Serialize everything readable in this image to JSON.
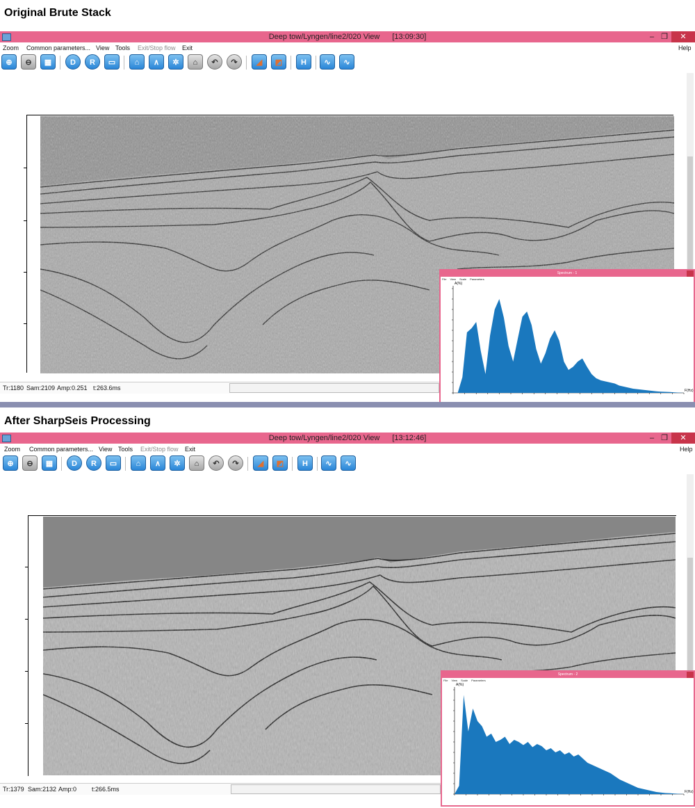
{
  "headings": {
    "top": "Original Brute Stack",
    "bottom": "After SharpSeis Processing"
  },
  "colors": {
    "titlebar": "#e8668d",
    "close_button": "#c8344a",
    "toolbar_button": "#2a86d8",
    "spectrum_fill": "#1a78be"
  },
  "menu": {
    "zoom": "Zoom",
    "common": "Common parameters...",
    "view": "View",
    "tools": "Tools",
    "exit_stop": "Exit/Stop flow",
    "exit": "Exit",
    "help": "Help"
  },
  "window_controls": {
    "minimize": "–",
    "restore": "❐",
    "close": "✕"
  },
  "toolbar_icons": [
    "zoom-in-icon",
    "zoom-out-icon",
    "fit-icon",
    "d-icon",
    "r-icon",
    "ruler-icon",
    "pick-icon",
    "horizon-icon",
    "gear-pick-icon",
    "trace-icon",
    "undo-icon",
    "redo-icon",
    "amplitude-icon",
    "edit-icon",
    "h-icon",
    "wave-icon",
    "wave-plus-icon"
  ],
  "windows": [
    {
      "title": "Deep tow/Lyngen/line2/020 View",
      "time": "[13:09:30]",
      "status": {
        "trace": "Tr:1180",
        "sample": "Sam:2109",
        "amp": "Amp:0.251",
        "time": "t:263.6ms"
      },
      "spectrum_title": "Spectrum - 1"
    },
    {
      "title": "Deep tow/Lyngen/line2/020 View",
      "time": "[13:12:46]",
      "status": {
        "trace": "Tr:1379",
        "sample": "Sam:2132",
        "amp": "Amp:0",
        "time": "t:266.5ms"
      },
      "spectrum_title": "Spectrum - 2"
    }
  ],
  "spectrum_menu": [
    "File",
    "View",
    "Scale",
    "Parameters"
  ],
  "spectrum_ylabel": "A(%)",
  "spectrum_xlabel": "F(Hz)",
  "chart_data": [
    {
      "type": "area",
      "ylabel": "A(%)",
      "xlabel": "F(Hz)",
      "ylim": [
        0,
        100
      ],
      "x": [
        0,
        2,
        4,
        6,
        8,
        10,
        12,
        14,
        16,
        18,
        20,
        22,
        24,
        26,
        28,
        30,
        32,
        34,
        36,
        38,
        40,
        42,
        44,
        46,
        48,
        50,
        52,
        54,
        56,
        58,
        60,
        62,
        64,
        66,
        68,
        70,
        72,
        74,
        76,
        78,
        80,
        82,
        84,
        86,
        88,
        90,
        92,
        94,
        96,
        98,
        100
      ],
      "y": [
        0,
        0,
        15,
        58,
        62,
        68,
        40,
        18,
        55,
        80,
        90,
        72,
        45,
        30,
        52,
        73,
        78,
        65,
        42,
        28,
        38,
        52,
        60,
        50,
        30,
        22,
        25,
        30,
        33,
        25,
        18,
        14,
        12,
        11,
        10,
        9,
        7,
        6,
        5,
        4,
        3.5,
        3,
        2.5,
        2,
        1.5,
        1.2,
        1,
        0.8,
        0.5,
        0.3,
        0
      ]
    },
    {
      "type": "area",
      "ylabel": "A(%)",
      "xlabel": "F(Hz)",
      "ylim": [
        0,
        100
      ],
      "x": [
        0,
        2,
        4,
        6,
        8,
        10,
        12,
        14,
        16,
        18,
        20,
        22,
        24,
        26,
        28,
        30,
        32,
        34,
        36,
        38,
        40,
        42,
        44,
        46,
        48,
        50,
        52,
        54,
        56,
        58,
        60,
        62,
        64,
        66,
        68,
        70,
        72,
        74,
        76,
        78,
        80,
        82,
        84,
        86,
        88,
        90,
        92,
        94,
        96,
        98,
        100
      ],
      "y": [
        0,
        8,
        95,
        60,
        82,
        70,
        65,
        55,
        58,
        50,
        52,
        55,
        48,
        52,
        50,
        47,
        50,
        45,
        48,
        46,
        42,
        44,
        40,
        42,
        38,
        40,
        36,
        38,
        34,
        30,
        28,
        26,
        24,
        22,
        20,
        17,
        14,
        12,
        10,
        8,
        6,
        5,
        4,
        3,
        2,
        1.5,
        1,
        0.8,
        0.5,
        0.3,
        0
      ]
    }
  ]
}
